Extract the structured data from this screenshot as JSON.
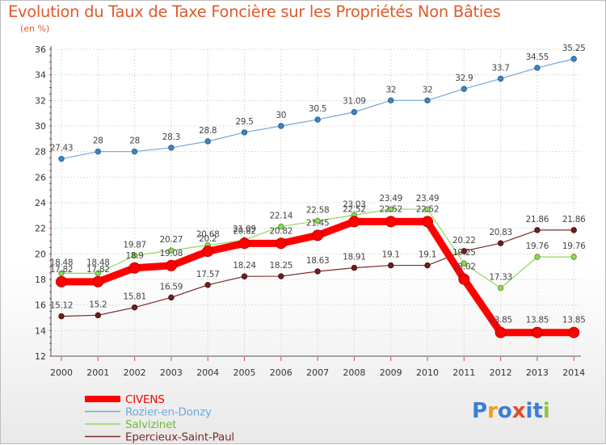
{
  "chart_data": {
    "type": "line",
    "title": "Evolution du Taux de Taxe Foncière sur les Propriétés Non Bâties",
    "subtitle": "(en %)",
    "xlabel": "",
    "ylabel": "(en %)",
    "ylim": [
      12,
      36
    ],
    "yticks": [
      12,
      14,
      16,
      18,
      20,
      22,
      24,
      26,
      28,
      30,
      32,
      34,
      36
    ],
    "grid": true,
    "legend_position": "bottom-left",
    "categories": [
      "2000",
      "2001",
      "2002",
      "2003",
      "2004",
      "2005",
      "2006",
      "2007",
      "2008",
      "2009",
      "2010",
      "2011",
      "2012",
      "2013",
      "2014"
    ],
    "series": [
      {
        "name": "CIVENS",
        "color": "#ff0000",
        "values": [
          17.82,
          17.82,
          18.9,
          19.08,
          20.2,
          20.82,
          20.82,
          21.45,
          22.52,
          22.52,
          22.52,
          18.02,
          13.85,
          13.85,
          13.85
        ],
        "labels": [
          "17.82",
          "17.82",
          "18.9",
          "19.08",
          "20.2",
          "20.82",
          "20.82",
          "21.45",
          "22.52",
          "22.52",
          "22.52",
          "18.02",
          "13.85",
          "13.85",
          "13.85"
        ]
      },
      {
        "name": "Rozier-en-Donzy",
        "color": "#6fa8dc",
        "values": [
          27.43,
          28,
          28,
          28.3,
          28.8,
          29.5,
          30,
          30.5,
          31.09,
          32,
          32,
          32.9,
          33.7,
          34.55,
          35.25
        ],
        "labels": [
          "27.43",
          "28",
          "28",
          "28.3",
          "28.8",
          "29.5",
          "30",
          "30.5",
          "31.09",
          "32",
          "32",
          "32.9",
          "33.7",
          "34.55",
          "35.25"
        ]
      },
      {
        "name": "Salvizinet",
        "color": "#8fd65a",
        "values": [
          18.48,
          18.48,
          19.87,
          20.27,
          20.68,
          21.09,
          22.14,
          22.58,
          23.03,
          23.49,
          23.49,
          19.25,
          17.33,
          19.76,
          19.76
        ],
        "labels": [
          "18.48",
          "18.48",
          "19.87",
          "20.27",
          "20.68",
          "21.09",
          "22.14",
          "22.58",
          "23.03",
          "23.49",
          "23.49",
          "19.25",
          "17.33",
          "19.76",
          "19.76"
        ]
      },
      {
        "name": "Epercieux-Saint-Paul",
        "color": "#7a2a2a",
        "values": [
          15.12,
          15.2,
          15.81,
          16.59,
          17.57,
          18.24,
          18.25,
          18.63,
          18.91,
          19.1,
          19.1,
          20.22,
          20.83,
          21.86,
          21.86
        ],
        "labels": [
          "15.12",
          "15.2",
          "15.81",
          "16.59",
          "17.57",
          "18.24",
          "18.25",
          "18.63",
          "18.91",
          "19.1",
          "19.1",
          "20.22",
          "20.83",
          "21.86",
          "21.86"
        ]
      }
    ]
  },
  "brand": {
    "text": "Proxiti",
    "letters": [
      "P",
      "r",
      "o",
      "x",
      "i",
      "t",
      "i"
    ],
    "letter_colors": [
      "#3b7dd8",
      "#e8a020",
      "#3b7dd8",
      "#e84a2a",
      "#3b7dd8",
      "#3b7dd8",
      "#8cc63f"
    ]
  }
}
